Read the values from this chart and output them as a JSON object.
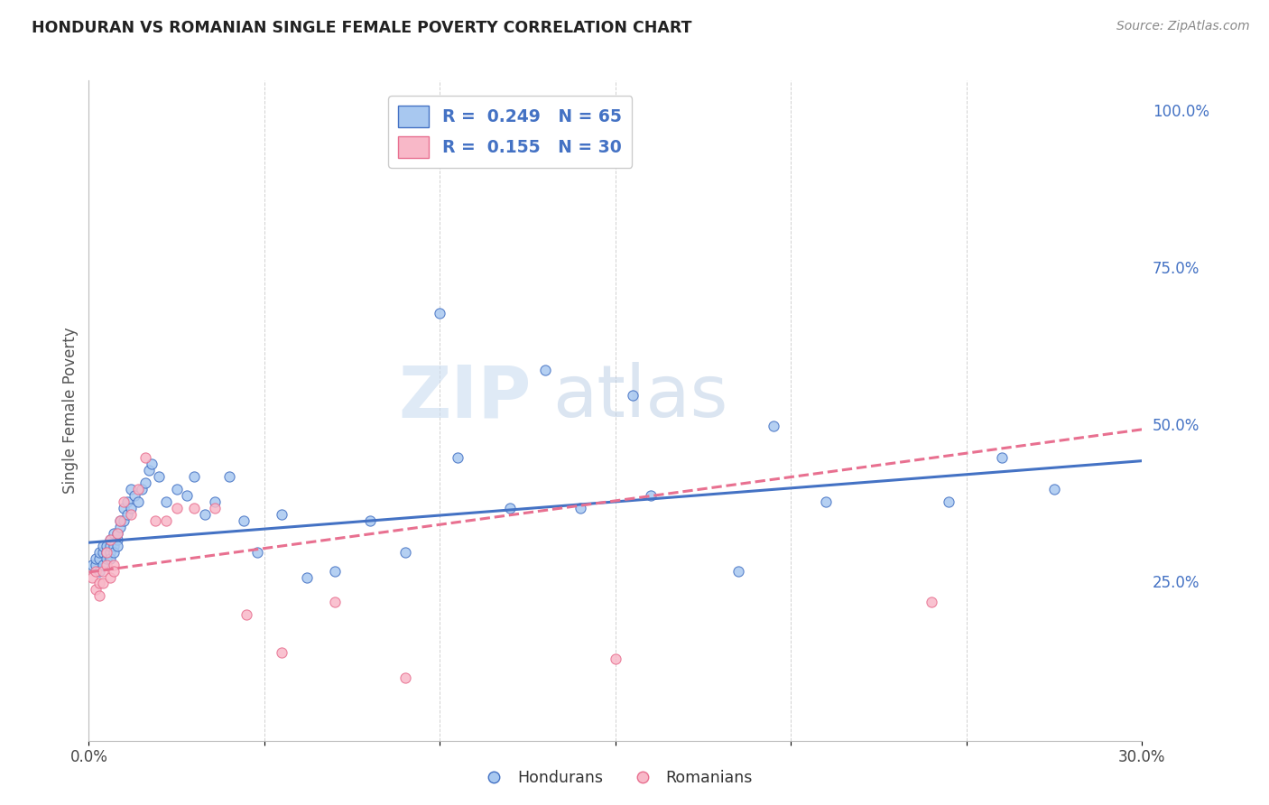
{
  "title": "HONDURAN VS ROMANIAN SINGLE FEMALE POVERTY CORRELATION CHART",
  "source": "Source: ZipAtlas.com",
  "ylabel": "Single Female Poverty",
  "legend_hondurans": "Hondurans",
  "legend_romanians": "Romanians",
  "r_hondurans": "0.249",
  "n_hondurans": "65",
  "r_romanians": "0.155",
  "n_romanians": "30",
  "watermark_zip": "ZIP",
  "watermark_atlas": "atlas",
  "blue_fill": "#A8C8F0",
  "pink_fill": "#F8B8C8",
  "blue_edge": "#4472C4",
  "pink_edge": "#E87090",
  "blue_line": "#4472C4",
  "pink_line": "#E87090",
  "ytick_color": "#4472C4",
  "title_color": "#222222",
  "source_color": "#888888",
  "grid_color": "#CCCCCC",
  "bg_color": "#FFFFFF",
  "hondurans_x": [
    0.001,
    0.002,
    0.002,
    0.003,
    0.003,
    0.003,
    0.004,
    0.004,
    0.004,
    0.005,
    0.005,
    0.005,
    0.005,
    0.006,
    0.006,
    0.006,
    0.006,
    0.007,
    0.007,
    0.007,
    0.008,
    0.008,
    0.008,
    0.009,
    0.009,
    0.01,
    0.01,
    0.011,
    0.011,
    0.012,
    0.012,
    0.013,
    0.014,
    0.015,
    0.016,
    0.017,
    0.018,
    0.02,
    0.022,
    0.025,
    0.028,
    0.03,
    0.033,
    0.036,
    0.04,
    0.044,
    0.048,
    0.055,
    0.062,
    0.07,
    0.08,
    0.09,
    0.105,
    0.12,
    0.14,
    0.16,
    0.185,
    0.21,
    0.245,
    0.275,
    0.1,
    0.13,
    0.155,
    0.195,
    0.26
  ],
  "hondurans_y": [
    0.28,
    0.28,
    0.29,
    0.29,
    0.3,
    0.27,
    0.3,
    0.28,
    0.31,
    0.29,
    0.3,
    0.31,
    0.3,
    0.3,
    0.29,
    0.31,
    0.32,
    0.31,
    0.3,
    0.33,
    0.32,
    0.33,
    0.31,
    0.34,
    0.35,
    0.35,
    0.37,
    0.38,
    0.36,
    0.37,
    0.4,
    0.39,
    0.38,
    0.4,
    0.41,
    0.43,
    0.44,
    0.42,
    0.38,
    0.4,
    0.39,
    0.42,
    0.36,
    0.38,
    0.42,
    0.35,
    0.3,
    0.36,
    0.26,
    0.27,
    0.35,
    0.3,
    0.45,
    0.37,
    0.37,
    0.39,
    0.27,
    0.38,
    0.38,
    0.4,
    0.68,
    0.59,
    0.55,
    0.5,
    0.45
  ],
  "romanians_x": [
    0.001,
    0.002,
    0.002,
    0.003,
    0.003,
    0.004,
    0.004,
    0.005,
    0.005,
    0.006,
    0.006,
    0.007,
    0.007,
    0.008,
    0.009,
    0.01,
    0.012,
    0.014,
    0.016,
    0.019,
    0.022,
    0.025,
    0.03,
    0.036,
    0.045,
    0.055,
    0.07,
    0.09,
    0.15,
    0.24
  ],
  "romanians_y": [
    0.26,
    0.24,
    0.27,
    0.25,
    0.23,
    0.27,
    0.25,
    0.28,
    0.3,
    0.26,
    0.32,
    0.28,
    0.27,
    0.33,
    0.35,
    0.38,
    0.36,
    0.4,
    0.45,
    0.35,
    0.35,
    0.37,
    0.37,
    0.37,
    0.2,
    0.14,
    0.22,
    0.1,
    0.13,
    0.22
  ],
  "xmin": 0.0,
  "xmax": 0.3,
  "ymin": 0.0,
  "ymax": 1.05,
  "hond_trend_x0": 0.0,
  "hond_trend_x1": 0.3,
  "hond_trend_y0": 0.315,
  "hond_trend_y1": 0.445,
  "rom_trend_x0": 0.0,
  "rom_trend_x1": 0.3,
  "rom_trend_y0": 0.268,
  "rom_trend_y1": 0.495,
  "marker_size": 65,
  "marker_linewidth": 0.8
}
